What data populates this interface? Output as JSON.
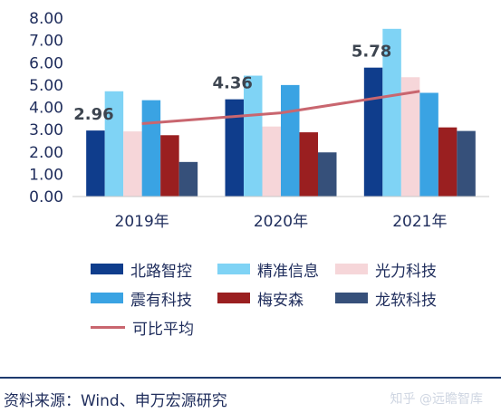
{
  "chart_data": {
    "type": "bar",
    "categories": [
      "2019年",
      "2020年",
      "2021年"
    ],
    "series": [
      {
        "name": "北路智控",
        "color": "#0f3d8c",
        "values": [
          2.96,
          4.36,
          5.78
        ]
      },
      {
        "name": "精准信息",
        "color": "#7fd3f5",
        "values": [
          4.72,
          5.42,
          7.52
        ]
      },
      {
        "name": "光力科技",
        "color": "#f6d6d9",
        "values": [
          2.92,
          3.14,
          5.35
        ]
      },
      {
        "name": "震有科技",
        "color": "#3aa3e3",
        "values": [
          4.32,
          5.0,
          4.65
        ]
      },
      {
        "name": "梅安森",
        "color": "#9a1f20",
        "values": [
          2.75,
          2.88,
          3.1
        ]
      },
      {
        "name": "龙软科技",
        "color": "#36507a",
        "values": [
          1.55,
          1.98,
          2.94
        ]
      }
    ],
    "line": {
      "name": "可比平均",
      "color": "#c9666f",
      "values": [
        3.27,
        3.75,
        4.72
      ]
    },
    "data_labels": [
      {
        "category": "2019年",
        "series": "北路智控",
        "text": "2.96"
      },
      {
        "category": "2020年",
        "series": "北路智控",
        "text": "4.36"
      },
      {
        "category": "2021年",
        "series": "北路智控",
        "text": "5.78"
      }
    ],
    "yticks": [
      "0.00",
      "1.00",
      "2.00",
      "3.00",
      "4.00",
      "5.00",
      "6.00",
      "7.00",
      "8.00"
    ],
    "ylim": [
      0,
      8
    ],
    "title": "",
    "xlabel": "",
    "ylabel": "",
    "legend_position": "bottom"
  },
  "source": "资料来源：Wind、申万宏源研究",
  "watermark": "知乎 @远瞻智库"
}
